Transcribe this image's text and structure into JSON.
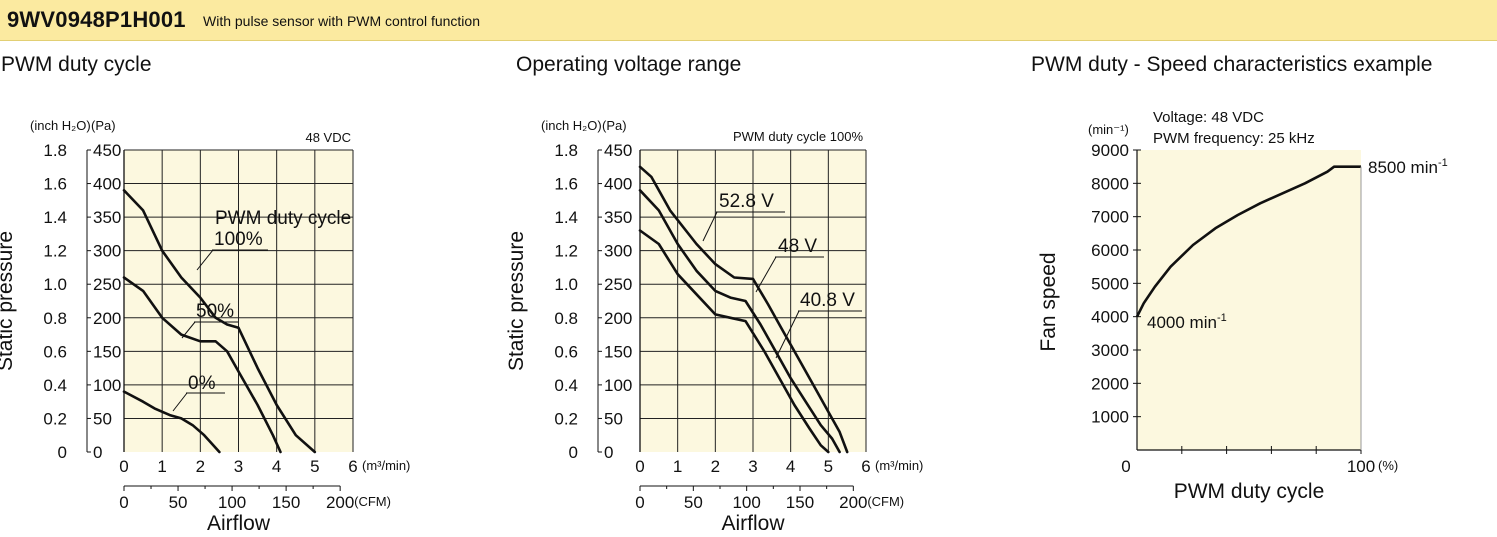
{
  "header": {
    "model": "9WV0948P1H001",
    "description": "With pulse sensor with PWM control function"
  },
  "chart_data": [
    {
      "type": "line",
      "title": "PWM duty cycle",
      "condition": "48 VDC",
      "xlabel": "Airflow",
      "ylabel": "Static pressure",
      "x_units": [
        "(m³/min)",
        "(CFM)"
      ],
      "y_units": [
        "(inch H₂O)",
        "(Pa)"
      ],
      "x_ticks_m3min": [
        "0",
        "1",
        "2",
        "3",
        "4",
        "5",
        "6"
      ],
      "x_ticks_cfm": [
        "0",
        "50",
        "100",
        "150",
        "200"
      ],
      "y_ticks_pa": [
        "0",
        "50",
        "100",
        "150",
        "200",
        "250",
        "300",
        "350",
        "400",
        "450"
      ],
      "y_ticks_inch": [
        "0",
        "0.2",
        "0.4",
        "0.6",
        "0.8",
        "1.0",
        "1.2",
        "1.4",
        "1.6",
        "1.8"
      ],
      "xlim": [
        0,
        6
      ],
      "ylim": [
        0,
        450
      ],
      "grid": true,
      "legend_title": "PWM duty cycle",
      "series": [
        {
          "name": "100%",
          "x": [
            0,
            0.5,
            1,
            1.5,
            2,
            2.4,
            2.7,
            3,
            3.5,
            4,
            4.5,
            5
          ],
          "y": [
            390,
            360,
            300,
            260,
            230,
            200,
            190,
            185,
            125,
            70,
            25,
            0
          ]
        },
        {
          "name": "50%",
          "x": [
            0,
            0.5,
            1,
            1.5,
            2,
            2.4,
            2.7,
            3,
            3.5,
            3.9,
            4.1
          ],
          "y": [
            260,
            240,
            200,
            175,
            165,
            165,
            150,
            120,
            70,
            25,
            0
          ]
        },
        {
          "name": "0%",
          "x": [
            0,
            0.5,
            0.8,
            1.2,
            1.5,
            1.8,
            2.1,
            2.5
          ],
          "y": [
            90,
            75,
            65,
            55,
            50,
            40,
            25,
            0
          ]
        }
      ]
    },
    {
      "type": "line",
      "title": "Operating voltage range",
      "condition": "PWM duty cycle 100%",
      "xlabel": "Airflow",
      "ylabel": "Static pressure",
      "x_units": [
        "(m³/min)",
        "(CFM)"
      ],
      "y_units": [
        "(inch H₂O)",
        "(Pa)"
      ],
      "x_ticks_m3min": [
        "0",
        "1",
        "2",
        "3",
        "4",
        "5",
        "6"
      ],
      "x_ticks_cfm": [
        "0",
        "50",
        "100",
        "150",
        "200"
      ],
      "y_ticks_pa": [
        "450",
        "400",
        "350",
        "300",
        "250",
        "200",
        "150",
        "100",
        "50",
        "0"
      ],
      "y_ticks_inch": [
        "1.8",
        "1.6",
        "1.4",
        "1.2",
        "1.0",
        "0.8",
        "0.6",
        "0.4",
        "0.2",
        "0"
      ],
      "xlim": [
        0,
        6
      ],
      "ylim": [
        0,
        450
      ],
      "grid": true,
      "series": [
        {
          "name": "52.8 V",
          "x": [
            0,
            0.3,
            0.8,
            1.5,
            2,
            2.5,
            3,
            3.4,
            3.8,
            4.2,
            4.6,
            5,
            5.3,
            5.5
          ],
          "y": [
            425,
            410,
            360,
            310,
            280,
            260,
            258,
            220,
            180,
            140,
            100,
            60,
            30,
            0
          ]
        },
        {
          "name": "48 V",
          "x": [
            0,
            0.5,
            1,
            1.5,
            2,
            2.4,
            2.8,
            3.2,
            3.6,
            4,
            4.4,
            4.8,
            5.1,
            5.3
          ],
          "y": [
            390,
            360,
            310,
            270,
            240,
            230,
            225,
            190,
            150,
            110,
            75,
            40,
            20,
            0
          ]
        },
        {
          "name": "40.8 V",
          "x": [
            0,
            0.5,
            1,
            1.5,
            2,
            2.4,
            2.8,
            3.3,
            3.7,
            4.1,
            4.5,
            4.8,
            5
          ],
          "y": [
            330,
            310,
            265,
            235,
            205,
            200,
            195,
            150,
            110,
            70,
            35,
            10,
            0
          ]
        }
      ]
    },
    {
      "type": "line",
      "title": "PWM duty - Speed characteristics example",
      "conditions": [
        "Voltage: 48 VDC",
        "PWM frequency: 25 kHz"
      ],
      "xlabel": "PWM duty cycle",
      "ylabel": "Fan speed",
      "y_unit": "(min⁻¹)",
      "x_unit": "(%)",
      "x_ticks": [
        "0",
        "100"
      ],
      "y_ticks": [
        "9000",
        "8000",
        "7000",
        "6000",
        "5000",
        "4000",
        "3000",
        "2000",
        "1000"
      ],
      "xlim": [
        0,
        100
      ],
      "ylim": [
        0,
        9000
      ],
      "grid": false,
      "series": [
        {
          "x": [
            0,
            3,
            8,
            15,
            25,
            35,
            45,
            55,
            65,
            75,
            85,
            88,
            90,
            100
          ],
          "y": [
            4000,
            4400,
            4900,
            5500,
            6150,
            6650,
            7050,
            7400,
            7700,
            8000,
            8350,
            8500,
            8500,
            8500
          ]
        }
      ],
      "annotations": {
        "min_label": "4000 min",
        "max_label": "8500 min",
        "unit_sup": "-1"
      }
    }
  ]
}
